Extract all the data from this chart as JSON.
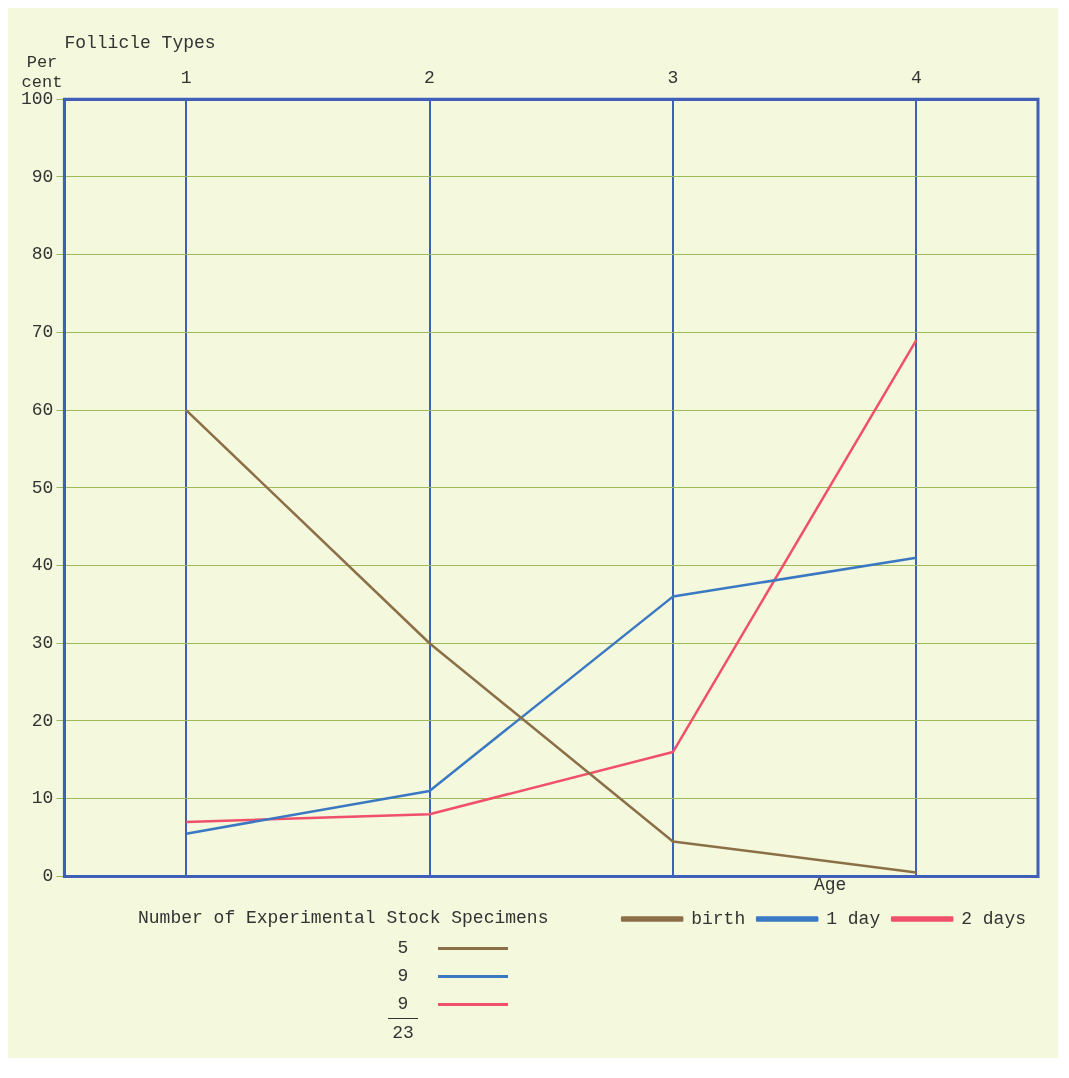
{
  "chart_data": {
    "type": "line",
    "xlabel": "Follicle Types",
    "ylabel": "Per cent",
    "legend_title": "Age",
    "categories": [
      "1",
      "2",
      "3",
      "4"
    ],
    "series": [
      {
        "name": "birth",
        "color": "#8b6f47",
        "values": [
          60,
          30,
          4.5,
          0.5
        ]
      },
      {
        "name": "1 day",
        "color": "#3a78c2",
        "values": [
          5.5,
          11,
          36,
          41
        ]
      },
      {
        "name": "2 days",
        "color": "#f0506a",
        "values": [
          7,
          8,
          16,
          69
        ]
      }
    ],
    "ylim": [
      0,
      100
    ],
    "yticks": [
      0,
      10,
      20,
      30,
      40,
      50,
      60,
      70,
      80,
      90,
      100
    ],
    "grid": true,
    "legend": "bottom right",
    "marker": "none",
    "line_style": "solid",
    "annotations": [
      "Number of Experimental Stock Specimens",
      "5",
      "9",
      "9",
      "23"
    ]
  }
}
